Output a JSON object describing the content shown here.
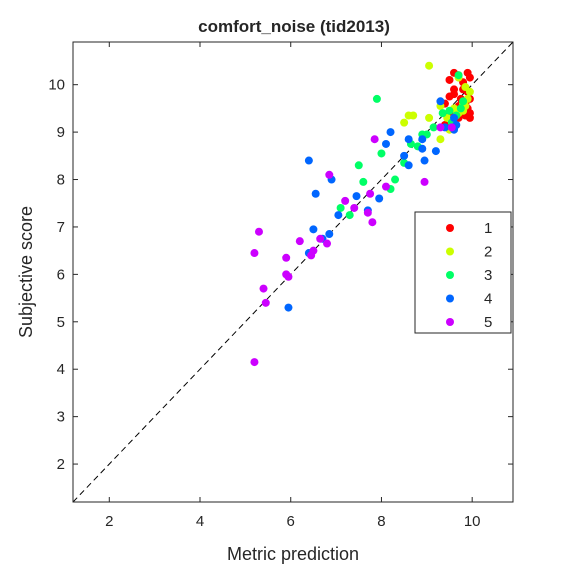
{
  "chart_data": {
    "type": "scatter",
    "title": "comfort_noise (tid2013)",
    "xlabel": "Metric prediction",
    "ylabel": "Subjective score",
    "xlim": [
      1.2,
      10.9
    ],
    "ylim": [
      1.2,
      10.9
    ],
    "xticks": [
      2,
      4,
      6,
      8,
      10
    ],
    "yticks": [
      2,
      3,
      4,
      5,
      6,
      7,
      8,
      9,
      10
    ],
    "grid": false,
    "reference_line": "y = x (dashed)",
    "legend_position": "right",
    "series": [
      {
        "name": "1",
        "color": "#ff0000",
        "points": [
          [
            9.5,
            10.1
          ],
          [
            9.6,
            10.25
          ],
          [
            9.7,
            10.2
          ],
          [
            9.8,
            10.05
          ],
          [
            9.9,
            10.25
          ],
          [
            9.95,
            10.15
          ],
          [
            9.6,
            9.9
          ],
          [
            9.8,
            9.9
          ],
          [
            9.9,
            9.85
          ],
          [
            9.95,
            9.7
          ],
          [
            9.4,
            9.6
          ],
          [
            9.5,
            9.75
          ],
          [
            9.6,
            9.8
          ],
          [
            9.75,
            9.7
          ],
          [
            9.85,
            9.6
          ],
          [
            9.7,
            9.55
          ],
          [
            9.9,
            9.5
          ],
          [
            9.95,
            9.4
          ],
          [
            9.85,
            9.35
          ],
          [
            9.7,
            9.3
          ],
          [
            9.4,
            9.15
          ],
          [
            9.6,
            9.25
          ],
          [
            9.5,
            9.4
          ],
          [
            9.95,
            9.3
          ]
        ]
      },
      {
        "name": "2",
        "color": "#ccff00",
        "points": [
          [
            9.05,
            10.4
          ],
          [
            9.7,
            10.15
          ],
          [
            9.85,
            9.95
          ],
          [
            9.95,
            9.85
          ],
          [
            9.9,
            9.7
          ],
          [
            9.8,
            9.6
          ],
          [
            9.7,
            9.4
          ],
          [
            9.6,
            9.5
          ],
          [
            9.45,
            9.3
          ],
          [
            9.3,
            9.55
          ],
          [
            9.5,
            9.05
          ],
          [
            9.3,
            8.85
          ],
          [
            8.7,
            9.35
          ],
          [
            8.6,
            9.35
          ],
          [
            8.5,
            9.2
          ],
          [
            9.05,
            9.3
          ],
          [
            9.8,
            9.45
          ],
          [
            9.85,
            9.55
          ]
        ]
      },
      {
        "name": "3",
        "color": "#00ff66",
        "points": [
          [
            9.7,
            10.2
          ],
          [
            9.8,
            9.65
          ],
          [
            9.75,
            9.5
          ],
          [
            9.65,
            9.35
          ],
          [
            9.55,
            9.2
          ],
          [
            9.6,
            9.1
          ],
          [
            9.5,
            9.45
          ],
          [
            9.35,
            9.4
          ],
          [
            9.15,
            9.1
          ],
          [
            9.0,
            8.95
          ],
          [
            8.9,
            8.95
          ],
          [
            8.8,
            8.7
          ],
          [
            8.65,
            8.75
          ],
          [
            7.9,
            9.7
          ],
          [
            8.0,
            8.55
          ],
          [
            8.5,
            8.35
          ],
          [
            8.3,
            8.0
          ],
          [
            8.2,
            7.8
          ],
          [
            7.5,
            8.3
          ],
          [
            7.6,
            7.95
          ],
          [
            7.1,
            7.4
          ],
          [
            7.3,
            7.25
          ]
        ]
      },
      {
        "name": "4",
        "color": "#0066ff",
        "points": [
          [
            9.3,
            9.65
          ],
          [
            9.6,
            9.3
          ],
          [
            9.6,
            9.05
          ],
          [
            9.4,
            9.1
          ],
          [
            9.2,
            8.6
          ],
          [
            8.9,
            8.85
          ],
          [
            8.95,
            8.4
          ],
          [
            8.6,
            8.85
          ],
          [
            8.2,
            9.0
          ],
          [
            8.5,
            8.5
          ],
          [
            8.6,
            8.3
          ],
          [
            8.1,
            8.75
          ],
          [
            7.45,
            7.65
          ],
          [
            7.95,
            7.6
          ],
          [
            7.7,
            7.35
          ],
          [
            6.4,
            8.4
          ],
          [
            6.9,
            8.0
          ],
          [
            6.55,
            7.7
          ],
          [
            7.05,
            7.25
          ],
          [
            6.85,
            6.85
          ],
          [
            6.7,
            6.75
          ],
          [
            6.5,
            6.95
          ],
          [
            6.4,
            6.45
          ],
          [
            5.95,
            5.3
          ],
          [
            9.65,
            9.15
          ],
          [
            8.9,
            8.65
          ]
        ]
      },
      {
        "name": "5",
        "color": "#cc00ff",
        "points": [
          [
            9.3,
            9.1
          ],
          [
            8.95,
            7.95
          ],
          [
            8.1,
            7.85
          ],
          [
            7.85,
            8.85
          ],
          [
            7.75,
            7.7
          ],
          [
            7.8,
            7.1
          ],
          [
            7.7,
            7.3
          ],
          [
            7.4,
            7.4
          ],
          [
            7.2,
            7.55
          ],
          [
            6.85,
            8.1
          ],
          [
            6.8,
            6.65
          ],
          [
            6.65,
            6.75
          ],
          [
            6.5,
            6.5
          ],
          [
            6.45,
            6.4
          ],
          [
            6.2,
            6.7
          ],
          [
            5.9,
            6.35
          ],
          [
            5.9,
            6.0
          ],
          [
            5.95,
            5.95
          ],
          [
            5.45,
            5.4
          ],
          [
            5.3,
            6.9
          ],
          [
            5.2,
            6.45
          ],
          [
            5.4,
            5.7
          ],
          [
            5.2,
            4.15
          ],
          [
            9.55,
            9.1
          ]
        ]
      }
    ]
  }
}
